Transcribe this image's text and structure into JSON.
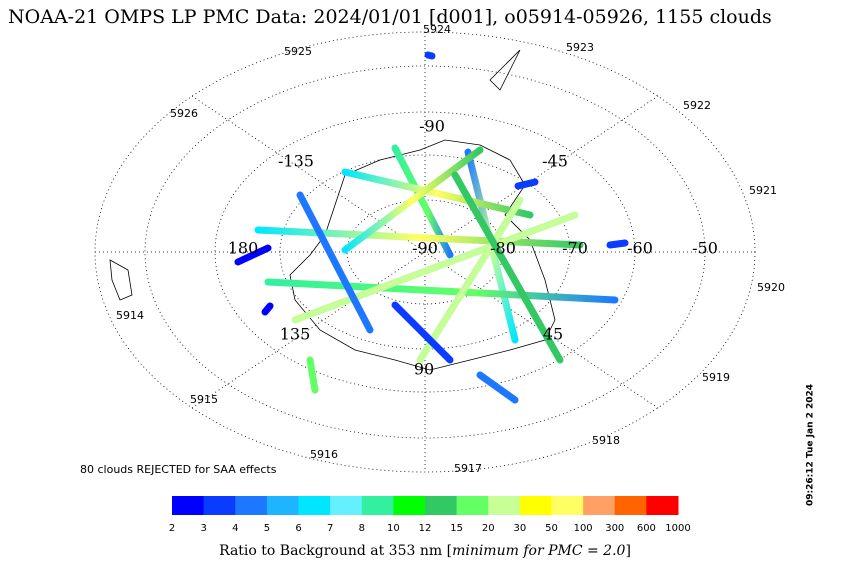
{
  "title": "NOAA-21 OMPS LP PMC Data: 2024/01/01 [d001], o05914-05926, 1155 clouds",
  "map": {
    "orbit_labels": [
      "5924",
      "5923",
      "5922",
      "5921",
      "5920",
      "5919",
      "5918",
      "5917",
      "5916",
      "5915",
      "5914",
      "5926",
      "5925"
    ],
    "longitude_labels": [
      "-90",
      "-135",
      "-45",
      "180",
      "135",
      "90",
      "45"
    ],
    "latitude_labels": [
      "-90",
      "-80",
      "-70",
      "-60",
      "-50"
    ],
    "note": "80 clouds REJECTED for SAA effects"
  },
  "colorbar": {
    "colors": [
      "#0000ff",
      "#0a3cff",
      "#1e78ff",
      "#1eb4ff",
      "#00e6ff",
      "#64f0ff",
      "#32f0a0",
      "#00ff00",
      "#32c864",
      "#64ff64",
      "#c8ff96",
      "#ffff00",
      "#ffff64",
      "#ffa064",
      "#ff6400",
      "#ff0000"
    ],
    "labels": [
      "2",
      "3",
      "4",
      "5",
      "6",
      "7",
      "8",
      "10",
      "12",
      "15",
      "20",
      "30",
      "50",
      "100",
      "300",
      "600",
      "1000"
    ],
    "caption": "Ratio to Background at 353 nm [",
    "caption_emphasis": "minimum for PMC = 2.0",
    "caption_close": "]"
  },
  "timestamp": "09:26:12 Tue Jan  2 2024"
}
